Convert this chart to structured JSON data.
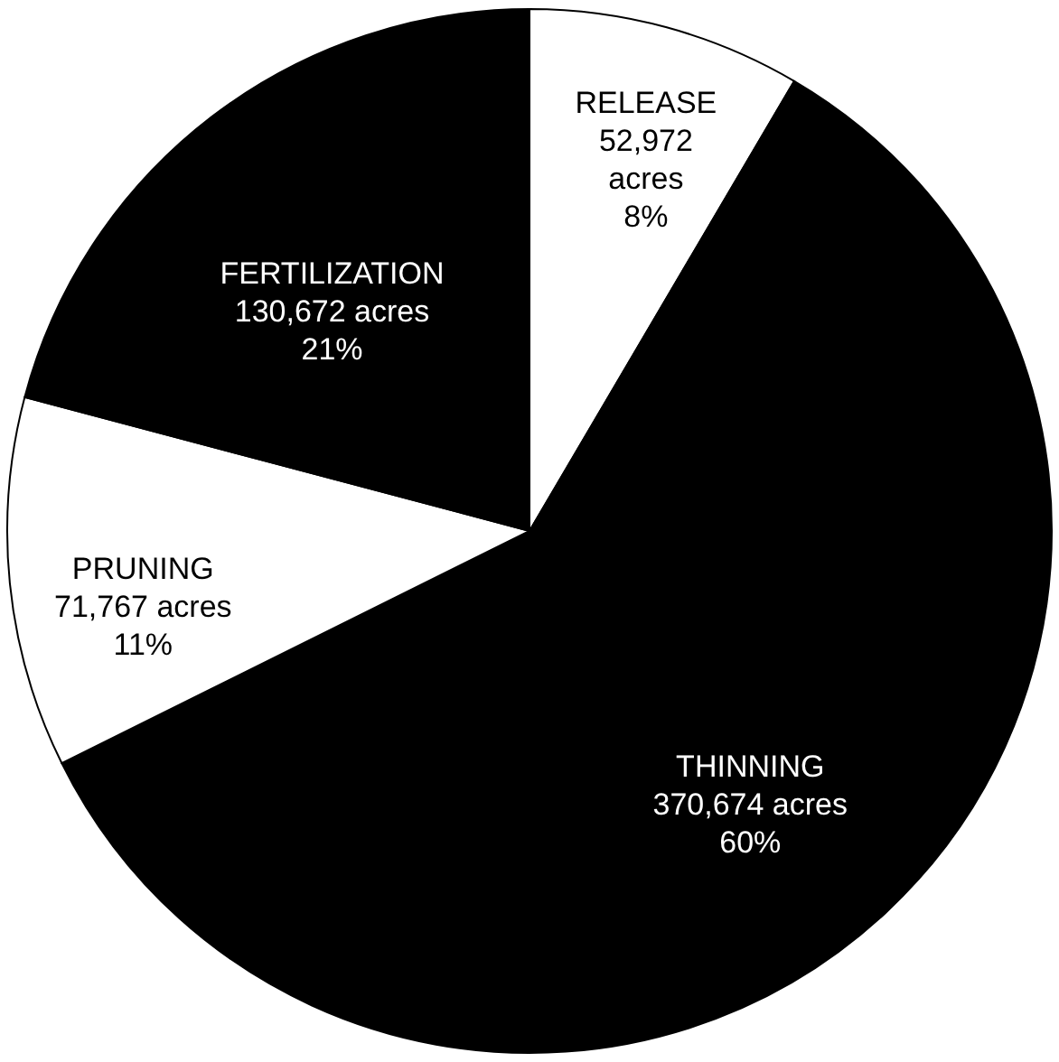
{
  "chart_data": {
    "type": "pie",
    "categories": [
      "RELEASE",
      "THINNING",
      "PRUNING",
      "FERTILIZATION"
    ],
    "values": [
      52972,
      370674,
      71767,
      130672
    ],
    "colors": [
      "#ffffff",
      "#000000",
      "#ffffff",
      "#000000"
    ],
    "value_labels": [
      "52,972\nacres\n8%",
      "370,674 acres\n60%",
      "71,767 acres\n11%",
      "130,672 acres\n21%"
    ]
  }
}
